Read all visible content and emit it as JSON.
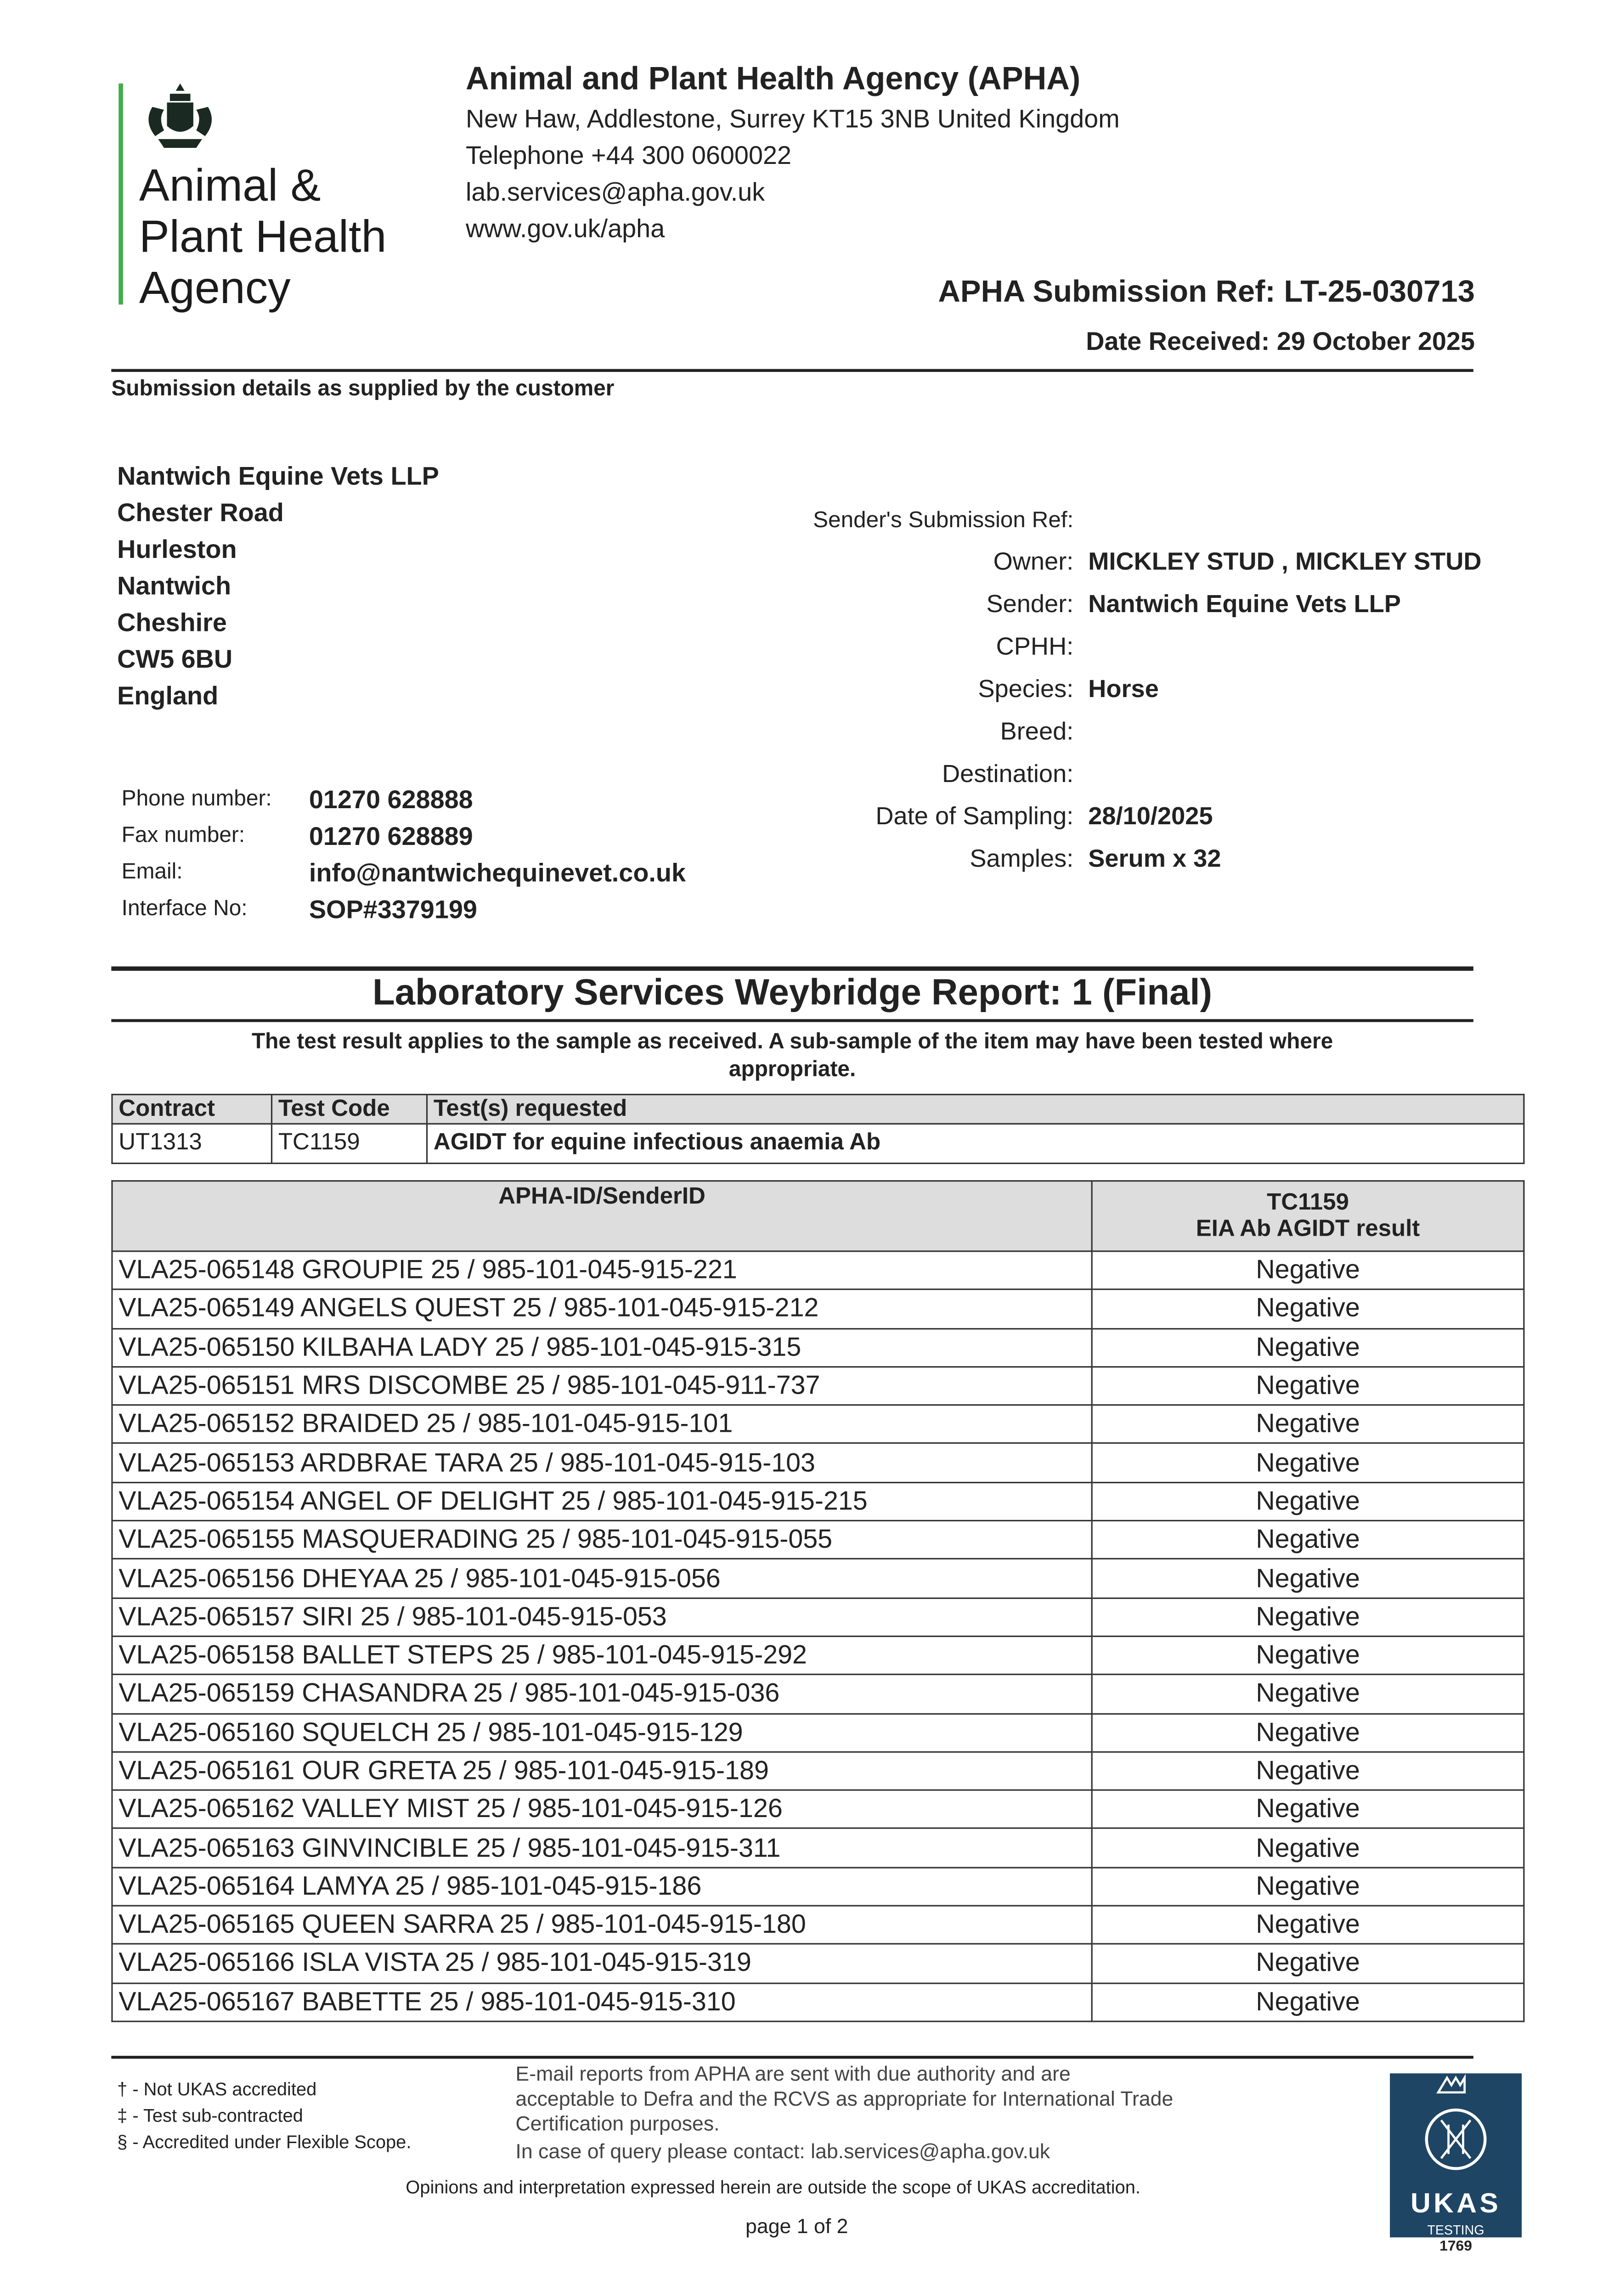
{
  "logo": {
    "line1": "Animal &",
    "line2": "Plant Health",
    "line3": "Agency",
    "crest": "royal-coat-of-arms"
  },
  "header": {
    "org": "Animal and Plant Health Agency (APHA)",
    "address": "New Haw, Addlestone, Surrey KT15 3NB United Kingdom",
    "telephone": "Telephone +44 300 0600022",
    "email": "lab.services@apha.gov.uk",
    "web": "www.gov.uk/apha",
    "submission_ref": "APHA Submission Ref: LT-25-030713",
    "date_received": "Date Received: 29 October 2025"
  },
  "submission": {
    "heading": "Submission details as supplied by the customer",
    "address": [
      "Nantwich Equine Vets LLP",
      "Chester Road",
      "Hurleston",
      "Nantwich",
      "Cheshire",
      "CW5 6BU",
      "England"
    ],
    "contacts": [
      {
        "label": "Phone number:",
        "value": "01270 628888"
      },
      {
        "label": "Fax number:",
        "value": "01270 628889"
      },
      {
        "label": "Email:",
        "value": "info@nantwichequinevet.co.uk"
      },
      {
        "label": "Interface No:",
        "value": "SOP#3379199"
      }
    ],
    "fields": [
      {
        "label": "Sender's Submission Ref:",
        "value": ""
      },
      {
        "label": "Owner:",
        "value": "MICKLEY STUD , MICKLEY STUD"
      },
      {
        "label": "Sender:",
        "value": "Nantwich Equine Vets LLP"
      },
      {
        "label": "CPHH:",
        "value": ""
      },
      {
        "label": "Species:",
        "value": "Horse"
      },
      {
        "label": "Breed:",
        "value": ""
      },
      {
        "label": "Destination:",
        "value": ""
      },
      {
        "label": "Date of Sampling:",
        "value": "28/10/2025"
      },
      {
        "label": "Samples:",
        "value": "Serum x 32"
      }
    ]
  },
  "report": {
    "title": "Laboratory Services Weybridge Report: 1 (Final)",
    "note_line1": "The test result applies to the sample as received. A sub-sample of the item may have been tested where",
    "note_line2": "appropriate."
  },
  "contract_table": {
    "headers": [
      "Contract",
      "Test Code",
      "Test(s) requested"
    ],
    "row": [
      "UT1313",
      "TC1159",
      "AGIDT for equine infectious anaemia Ab"
    ]
  },
  "results_table": {
    "header_id": "APHA-ID/SenderID",
    "header_test_code": "TC1159",
    "header_test_name": "EIA Ab AGIDT result",
    "rows": [
      {
        "id": "VLA25-065148 GROUPIE 25 / 985-101-045-915-221",
        "result": "Negative"
      },
      {
        "id": "VLA25-065149 ANGELS QUEST 25 / 985-101-045-915-212",
        "result": "Negative"
      },
      {
        "id": "VLA25-065150 KILBAHA LADY 25 / 985-101-045-915-315",
        "result": "Negative"
      },
      {
        "id": "VLA25-065151 MRS DISCOMBE 25 / 985-101-045-911-737",
        "result": "Negative"
      },
      {
        "id": "VLA25-065152 BRAIDED 25 / 985-101-045-915-101",
        "result": "Negative"
      },
      {
        "id": "VLA25-065153 ARDBRAE TARA 25 / 985-101-045-915-103",
        "result": "Negative"
      },
      {
        "id": "VLA25-065154 ANGEL OF DELIGHT 25 / 985-101-045-915-215",
        "result": "Negative"
      },
      {
        "id": "VLA25-065155 MASQUERADING 25 / 985-101-045-915-055",
        "result": "Negative"
      },
      {
        "id": "VLA25-065156 DHEYAA 25 / 985-101-045-915-056",
        "result": "Negative"
      },
      {
        "id": "VLA25-065157 SIRI 25 / 985-101-045-915-053",
        "result": "Negative"
      },
      {
        "id": "VLA25-065158 BALLET STEPS 25 / 985-101-045-915-292",
        "result": "Negative"
      },
      {
        "id": "VLA25-065159 CHASANDRA 25 / 985-101-045-915-036",
        "result": "Negative"
      },
      {
        "id": "VLA25-065160 SQUELCH 25 / 985-101-045-915-129",
        "result": "Negative"
      },
      {
        "id": "VLA25-065161 OUR GRETA 25 / 985-101-045-915-189",
        "result": "Negative"
      },
      {
        "id": "VLA25-065162 VALLEY MIST 25 / 985-101-045-915-126",
        "result": "Negative"
      },
      {
        "id": "VLA25-065163 GINVINCIBLE 25 / 985-101-045-915-311",
        "result": "Negative"
      },
      {
        "id": "VLA25-065164 LAMYA 25 / 985-101-045-915-186",
        "result": "Negative"
      },
      {
        "id": "VLA25-065165 QUEEN SARRA 25 / 985-101-045-915-180",
        "result": "Negative"
      },
      {
        "id": "VLA25-065166 ISLA VISTA 25 / 985-101-045-915-319",
        "result": "Negative"
      },
      {
        "id": "VLA25-065167 BABETTE 25 / 985-101-045-915-310",
        "result": "Negative"
      }
    ]
  },
  "footer": {
    "footnotes": [
      "† - Not UKAS accredited",
      "‡ - Test sub-contracted",
      "§ - Accredited under Flexible Scope."
    ],
    "email_note": [
      "E-mail reports from APHA are sent with due authority and are",
      "acceptable to Defra and the RCVS as appropriate for International Trade",
      "Certification purposes."
    ],
    "query": "In case of query please contact: lab.services@apha.gov.uk",
    "opinions": "Opinions and interpretation expressed herein are outside the scope of UKAS accreditation.",
    "page": "page 1 of 2",
    "ukas": {
      "name": "UKAS",
      "type": "TESTING",
      "number": "1769",
      "color": "#1f4564"
    }
  }
}
